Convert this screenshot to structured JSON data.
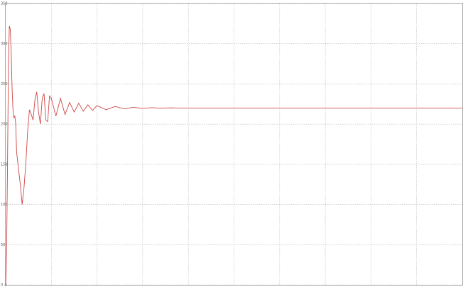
{
  "chart_data": {
    "type": "line",
    "title": "",
    "xlabel": "",
    "ylabel": "",
    "xlim": [
      0,
      0.5
    ],
    "ylim": [
      0,
      350
    ],
    "x_ticks": [
      0,
      0.05,
      0.1,
      0.15,
      0.2,
      0.25,
      0.3,
      0.35,
      0.4,
      0.45
    ],
    "y_ticks": [
      0,
      50,
      100,
      150,
      200,
      250,
      300,
      350
    ],
    "x_tick_labels": [
      "0",
      "",
      "",
      "",
      "",
      "",
      "",
      "",
      "",
      ""
    ],
    "y_tick_labels": [
      "0",
      "50",
      "100",
      "150",
      "200",
      "250",
      "300",
      "350"
    ],
    "grid": true,
    "grid_style": "dotted",
    "line_color": "#d04545",
    "series": [
      {
        "x": [
          0,
          0.001,
          0.002,
          0.003,
          0.004,
          0.005,
          0.006,
          0.007,
          0.008,
          0.009,
          0.01,
          0.011,
          0.012,
          0.014,
          0.016,
          0.018,
          0.02,
          0.022,
          0.024,
          0.026,
          0.028,
          0.03,
          0.032,
          0.034,
          0.036,
          0.038,
          0.04,
          0.042,
          0.044,
          0.046,
          0.048,
          0.05,
          0.055,
          0.06,
          0.065,
          0.07,
          0.075,
          0.08,
          0.085,
          0.09,
          0.095,
          0.1,
          0.11,
          0.12,
          0.13,
          0.14,
          0.15,
          0.16,
          0.17,
          0.18,
          0.19,
          0.2,
          0.25,
          0.3,
          0.35,
          0.4,
          0.45,
          0.5
        ],
        "y": [
          0,
          40,
          150,
          270,
          322,
          318,
          290,
          245,
          218,
          208,
          210,
          200,
          165,
          145,
          125,
          100,
          120,
          150,
          190,
          218,
          212,
          205,
          230,
          240,
          215,
          200,
          232,
          238,
          205,
          203,
          235,
          232,
          210,
          232,
          212,
          227,
          215,
          226,
          216,
          224,
          217,
          223,
          218,
          222,
          219,
          221,
          219.5,
          220.5,
          219.8,
          220.2,
          220,
          220,
          220,
          220,
          220,
          220,
          220,
          220
        ]
      }
    ]
  }
}
